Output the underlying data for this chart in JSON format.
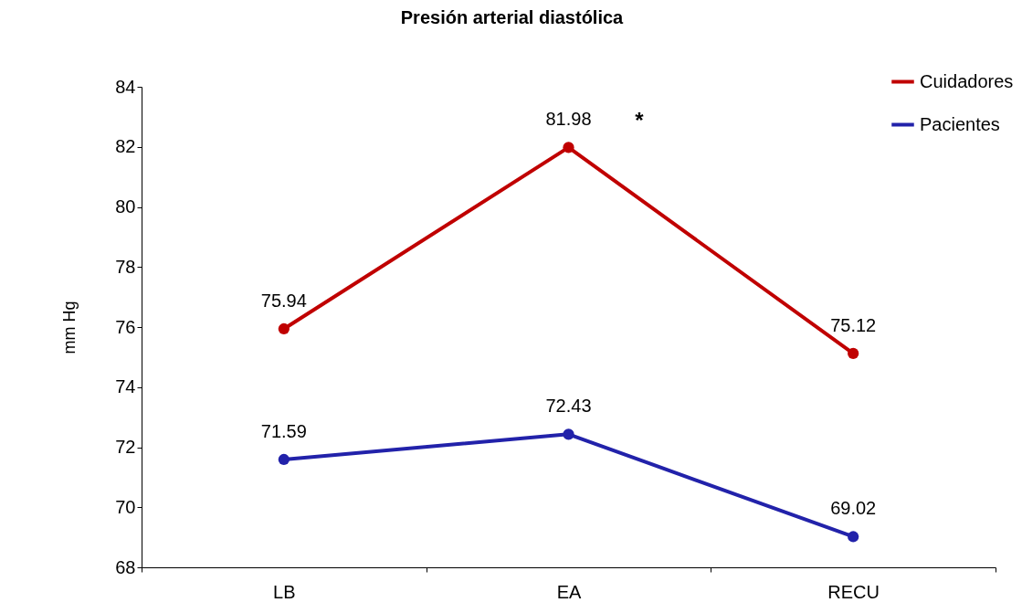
{
  "chart_data": {
    "type": "line",
    "title": "Presión arterial diastólica",
    "ylabel": "mm Hg",
    "categories": [
      "LB",
      "EA",
      "RECU"
    ],
    "series": [
      {
        "name": "Cuidadores",
        "color": "#c00000",
        "values": [
          75.94,
          81.98,
          75.12
        ]
      },
      {
        "name": "Pacientes",
        "color": "#2222aa",
        "values": [
          71.59,
          72.43,
          69.02
        ]
      }
    ],
    "ylim": [
      68,
      84
    ],
    "yticks": [
      68,
      70,
      72,
      74,
      76,
      78,
      80,
      82,
      84
    ],
    "grid": false,
    "legend": "top right",
    "marker": "circle",
    "line_style": "solid",
    "data_labels": true,
    "annotations": [
      "*"
    ]
  }
}
